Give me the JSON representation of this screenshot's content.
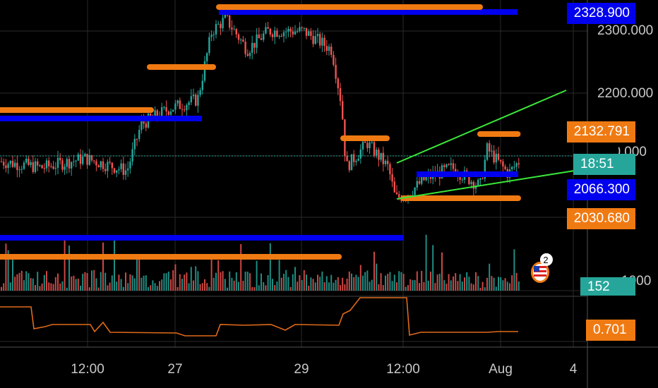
{
  "chart_data": {
    "type": "candlestick",
    "symbol_note": "",
    "x_ticks": [
      "12:00",
      "27",
      "29",
      "12:00",
      "Aug",
      "4"
    ],
    "price_axis_ticks": [
      "2300.000",
      "2200.000",
      "2100.000"
    ],
    "price_badges": [
      {
        "label": "2328.900",
        "value": 2328.9,
        "color": "#0000ee"
      },
      {
        "label": "2132.791",
        "value": 2132.791,
        "color": "#f07a12"
      },
      {
        "label": "18:51",
        "value": 2100,
        "color": "#26a69a"
      },
      {
        "label": "2066.300",
        "value": 2066.3,
        "color": "#0000ee"
      },
      {
        "label": "2030.680",
        "value": 2030.68,
        "color": "#f07a12"
      }
    ],
    "volume_badge": {
      "label": "152",
      "color": "#26a69a"
    },
    "volume_axis_tick": "1000",
    "indicator_badge": {
      "label": "0.701",
      "value": 0.701,
      "color": "#f07a12"
    },
    "event_marker": {
      "count": "2",
      "icon": "us-flag-icon"
    },
    "price_range": [
      1940,
      2340
    ],
    "colors": {
      "up": "#26a69a",
      "down": "#ef5350",
      "support_blue": "#0000ee",
      "resistance_orange": "#f07a12",
      "trendline": "#39e639",
      "indicator_line": "#e06a1a",
      "grid": "#2a2a2a"
    }
  }
}
